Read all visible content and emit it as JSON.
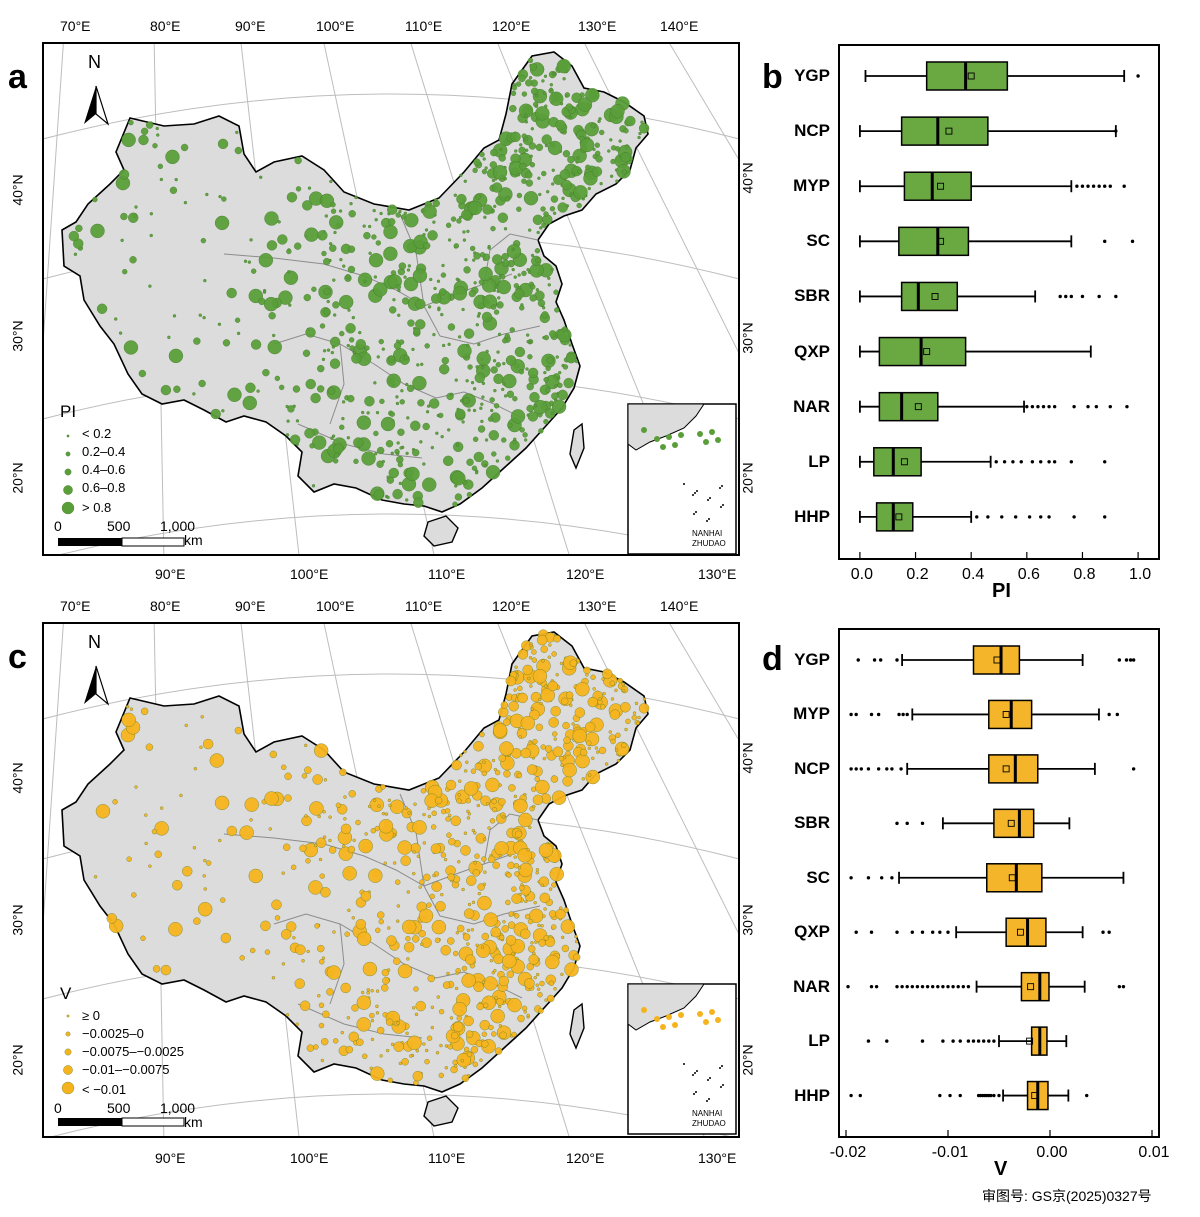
{
  "panels": {
    "a": "a",
    "b": "b",
    "c": "c",
    "d": "d"
  },
  "map": {
    "north_label": "N",
    "lon_top": [
      "70°E",
      "80°E",
      "90°E",
      "100°E",
      "110°E",
      "120°E",
      "130°E",
      "140°E"
    ],
    "lon_bottom": [
      "90°E",
      "100°E",
      "110°E",
      "120°E",
      "130°E"
    ],
    "lat_left": [
      "40°N",
      "30°N",
      "20°N"
    ],
    "lat_right": [
      "40°N",
      "30°N",
      "20°N"
    ],
    "scale_numbers": [
      "0",
      "500",
      "1,000"
    ],
    "scale_unit": "km",
    "inset_label_1": "NANHAI",
    "inset_label_2": "ZHUDAO",
    "land_color": "#dcdcdc",
    "boundary_color": "#000000"
  },
  "map_a": {
    "legend_title": "PI",
    "legend_items": [
      "< 0.2",
      "0.2–0.4",
      "0.4–0.6",
      "0.6–0.8",
      "> 0.8"
    ],
    "dot_color": "#5a9e3a"
  },
  "map_c": {
    "legend_title": "V",
    "legend_items": [
      "≥ 0",
      "−0.0025–0",
      "−0.0075–−0.0025",
      "−0.01–−0.0075",
      "< −0.01"
    ],
    "dot_color": "#f5b41e"
  },
  "chart_data": [
    {
      "type": "box",
      "panel": "b",
      "categories": [
        "YGP",
        "NCP",
        "MYP",
        "SC",
        "SBR",
        "QXP",
        "NAR",
        "LP",
        "HHP"
      ],
      "xlabel": "PI",
      "xlim": [
        -0.05,
        1.05
      ],
      "xticks": [
        "0.0",
        "0.2",
        "0.4",
        "0.6",
        "0.8",
        "1.0"
      ],
      "xtick_values": [
        0.0,
        0.2,
        0.4,
        0.6,
        0.8,
        1.0
      ],
      "color": "#6aa842",
      "boxes": [
        {
          "whislo": 0.02,
          "q1": 0.24,
          "med": 0.38,
          "q3": 0.53,
          "whishi": 0.95,
          "mean": 0.4,
          "fliers": [
            1.0
          ]
        },
        {
          "whislo": 0.0,
          "q1": 0.15,
          "med": 0.28,
          "q3": 0.46,
          "whishi": 0.92,
          "mean": 0.32,
          "fliers": [
            0.92
          ]
        },
        {
          "whislo": 0.0,
          "q1": 0.16,
          "med": 0.26,
          "q3": 0.4,
          "whishi": 0.76,
          "mean": 0.29,
          "fliers": [
            0.78,
            0.8,
            0.82,
            0.84,
            0.86,
            0.88,
            0.9,
            0.95
          ]
        },
        {
          "whislo": 0.0,
          "q1": 0.14,
          "med": 0.28,
          "q3": 0.39,
          "whishi": 0.76,
          "mean": 0.29,
          "fliers": [
            0.88,
            0.98
          ]
        },
        {
          "whislo": 0.0,
          "q1": 0.15,
          "med": 0.21,
          "q3": 0.35,
          "whishi": 0.63,
          "mean": 0.27,
          "fliers": [
            0.72,
            0.74,
            0.76,
            0.8,
            0.86,
            0.92
          ]
        },
        {
          "whislo": 0.0,
          "q1": 0.07,
          "med": 0.22,
          "q3": 0.38,
          "whishi": 0.83,
          "mean": 0.24,
          "fliers": []
        },
        {
          "whislo": 0.0,
          "q1": 0.07,
          "med": 0.15,
          "q3": 0.28,
          "whishi": 0.59,
          "mean": 0.21,
          "fliers": [
            0.6,
            0.62,
            0.64,
            0.66,
            0.68,
            0.7,
            0.77,
            0.82,
            0.85,
            0.9,
            0.96
          ]
        },
        {
          "whislo": 0.0,
          "q1": 0.05,
          "med": 0.12,
          "q3": 0.22,
          "whishi": 0.47,
          "mean": 0.16,
          "fliers": [
            0.49,
            0.52,
            0.55,
            0.58,
            0.62,
            0.65,
            0.68,
            0.7,
            0.76,
            0.88
          ]
        },
        {
          "whislo": 0.0,
          "q1": 0.06,
          "med": 0.12,
          "q3": 0.19,
          "whishi": 0.4,
          "mean": 0.14,
          "fliers": [
            0.42,
            0.46,
            0.51,
            0.56,
            0.61,
            0.65,
            0.68,
            0.77,
            0.88
          ]
        }
      ]
    },
    {
      "type": "box",
      "panel": "d",
      "categories": [
        "YGP",
        "MYP",
        "NCP",
        "SBR",
        "SC",
        "QXP",
        "NAR",
        "LP",
        "HHP"
      ],
      "xlabel": "V",
      "xlim": [
        -0.02,
        0.01
      ],
      "xticks": [
        "-0.02",
        "-0.01",
        "0.00",
        "0.01"
      ],
      "xtick_values": [
        -0.02,
        -0.01,
        0.0,
        0.01
      ],
      "color": "#f5b52a",
      "boxes": [
        {
          "whislo": -0.0145,
          "q1": -0.0075,
          "med": -0.0048,
          "q3": -0.003,
          "whishi": 0.0032,
          "mean": -0.0052,
          "fliers": [
            -0.0188,
            -0.0172,
            -0.0166,
            -0.015,
            0.0068,
            0.0075,
            0.0079,
            0.0082
          ]
        },
        {
          "whislo": -0.0135,
          "q1": -0.006,
          "med": -0.0038,
          "q3": -0.0018,
          "whishi": 0.0048,
          "mean": -0.0043,
          "fliers": [
            -0.0195,
            -0.019,
            -0.0175,
            -0.0168,
            -0.0148,
            -0.0144,
            -0.014,
            0.0058,
            0.0066
          ]
        },
        {
          "whislo": -0.014,
          "q1": -0.006,
          "med": -0.0034,
          "q3": -0.0012,
          "whishi": 0.0044,
          "mean": -0.0043,
          "fliers": [
            -0.0195,
            -0.019,
            -0.0185,
            -0.0178,
            -0.0168,
            -0.016,
            -0.0155,
            -0.0146,
            0.0082
          ]
        },
        {
          "whislo": -0.0105,
          "q1": -0.0055,
          "med": -0.003,
          "q3": -0.0016,
          "whishi": 0.0019,
          "mean": -0.0038,
          "fliers": [
            -0.015,
            -0.014,
            -0.0125
          ]
        },
        {
          "whislo": -0.0148,
          "q1": -0.0062,
          "med": -0.0033,
          "q3": -0.0008,
          "whishi": 0.0072,
          "mean": -0.0037,
          "fliers": [
            -0.0195,
            -0.0178,
            -0.0165,
            -0.0155
          ]
        },
        {
          "whislo": -0.0092,
          "q1": -0.0043,
          "med": -0.0022,
          "q3": -0.0004,
          "whishi": 0.0032,
          "mean": -0.0029,
          "fliers": [
            -0.019,
            -0.0175,
            -0.015,
            -0.0135,
            -0.0125,
            -0.0115,
            -0.0108,
            -0.01,
            0.0052,
            0.0058
          ]
        },
        {
          "whislo": -0.0072,
          "q1": -0.0028,
          "med": -0.001,
          "q3": -0.0001,
          "whishi": 0.0034,
          "mean": -0.0019,
          "fliers": [
            -0.0198,
            -0.0175,
            -0.017,
            -0.015,
            -0.0145,
            -0.014,
            -0.0135,
            -0.013,
            -0.0125,
            -0.012,
            -0.0115,
            -0.011,
            -0.0105,
            -0.01,
            -0.0095,
            -0.009,
            -0.0085,
            -0.008,
            0.0068,
            0.0072
          ]
        },
        {
          "whislo": -0.005,
          "q1": -0.0018,
          "med": -0.001,
          "q3": -0.0003,
          "whishi": 0.0016,
          "mean": -0.002,
          "fliers": [
            -0.0178,
            -0.016,
            -0.0125,
            -0.0105,
            -0.0095,
            -0.0088,
            -0.008,
            -0.0075,
            -0.007,
            -0.0065,
            -0.006,
            -0.0055
          ]
        },
        {
          "whislo": -0.0046,
          "q1": -0.0022,
          "med": -0.0012,
          "q3": -0.0002,
          "whishi": 0.0018,
          "mean": -0.0015,
          "fliers": [
            -0.0195,
            -0.0186,
            -0.0108,
            -0.0098,
            -0.0088,
            -0.007,
            -0.0068,
            -0.0066,
            -0.0064,
            -0.0062,
            -0.006,
            -0.0058,
            -0.0055,
            -0.005,
            0.0036
          ]
        }
      ]
    }
  ],
  "footer": {
    "approval_number": "审图号: GS京(2025)0327号"
  }
}
